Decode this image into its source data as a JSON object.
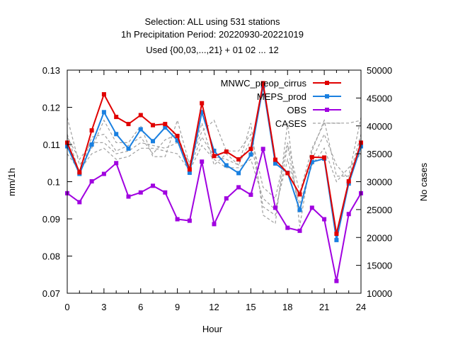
{
  "chart_data": {
    "type": "line",
    "title_lines": [
      "Selection: ALL using   531 stations",
      "1h Precipitation    Period: 20220930-20221019",
      "Used {00,03,...,21} + 01 02 ... 12"
    ],
    "xlabel": "Hour",
    "ylabel": "mm/1h",
    "y2label": "No cases",
    "xlim": [
      0,
      24
    ],
    "ylim": [
      0.07,
      0.13
    ],
    "y2lim": [
      10000,
      50000
    ],
    "xticks": [
      0,
      3,
      6,
      9,
      12,
      15,
      18,
      21,
      24
    ],
    "yticks": [
      0.07,
      0.08,
      0.09,
      0.1,
      0.11,
      0.12,
      0.13
    ],
    "ytick_labels": [
      "0.07",
      "0.08",
      "0.09",
      "0.1",
      "0.11",
      "0.12",
      "0.13"
    ],
    "y2ticks": [
      10000,
      15000,
      20000,
      25000,
      30000,
      35000,
      40000,
      45000,
      50000
    ],
    "grid": false,
    "legend_position": "top-right",
    "x": [
      0,
      1,
      2,
      3,
      4,
      5,
      6,
      7,
      8,
      9,
      10,
      11,
      12,
      13,
      14,
      15,
      16,
      17,
      18,
      19,
      20,
      21,
      22,
      23,
      24
    ],
    "series": [
      {
        "name": "MNWC_preop_cirrus",
        "color": "#e00000",
        "marker": "square",
        "axis": "y",
        "values": [
          0.1105,
          0.1025,
          0.1138,
          0.1235,
          0.1174,
          0.1155,
          0.1179,
          0.1152,
          0.1155,
          0.1123,
          0.1033,
          0.1211,
          0.1069,
          0.1081,
          0.106,
          0.1088,
          0.1265,
          0.1059,
          0.1023,
          0.0966,
          0.1066,
          0.1065,
          0.086,
          0.1001,
          0.1105
        ]
      },
      {
        "name": "MEPS_prod",
        "color": "#1a80e0",
        "marker": "square",
        "axis": "y",
        "values": [
          0.1095,
          0.1021,
          0.11,
          0.1187,
          0.1128,
          0.1089,
          0.1141,
          0.1109,
          0.1146,
          0.1111,
          0.1024,
          0.1187,
          0.1083,
          0.1044,
          0.1023,
          0.1073,
          0.1257,
          0.1049,
          0.1024,
          0.0924,
          0.1053,
          0.1062,
          0.0843,
          0.0995,
          0.1095
        ]
      },
      {
        "name": "OBS",
        "color": "#a000e0",
        "marker": "square",
        "axis": "y",
        "values": [
          0.0969,
          0.0945,
          0.1001,
          0.1021,
          0.105,
          0.096,
          0.0971,
          0.0989,
          0.0971,
          0.0899,
          0.0895,
          0.1054,
          0.0886,
          0.0955,
          0.0985,
          0.0965,
          0.1088,
          0.093,
          0.0876,
          0.0868,
          0.093,
          0.0899,
          0.0733,
          0.0913,
          0.0969
        ]
      },
      {
        "name": "CASES",
        "color": "#a0a0a0",
        "dash": true,
        "axis": "y2",
        "values": [
          41500,
          33000,
          36000,
          41000,
          37000,
          37000,
          40000,
          34500,
          34500,
          41000,
          33000,
          40500,
          33000,
          35000,
          33000,
          40500,
          24000,
          22500,
          40500,
          22000,
          35500,
          41000,
          31000,
          31000,
          41500
        ]
      }
    ],
    "case_lines": [
      {
        "values": [
          41500,
          33000,
          36000,
          41000,
          37000,
          37000,
          40000,
          34500,
          34500,
          41000,
          33000,
          40500,
          33000,
          35000,
          33000,
          40500,
          24000,
          22500,
          40500,
          22000,
          35500,
          41000,
          31000,
          31000,
          41500
        ]
      },
      {
        "values": [
          38500,
          31500,
          38000,
          38500,
          35500,
          36500,
          38000,
          35000,
          37500,
          38500,
          32500,
          38000,
          34500,
          34000,
          33000,
          37500,
          25500,
          24000,
          36500,
          24500,
          34000,
          38500,
          33000,
          30500,
          38500
        ]
      },
      {
        "values": [
          35000,
          32000,
          35000,
          36000,
          34000,
          34500,
          36000,
          36000,
          35500,
          35000,
          32000,
          36500,
          34000,
          32500,
          32500,
          34000,
          27000,
          25000,
          34000,
          26000,
          33000,
          36000,
          30000,
          32500,
          35000
        ]
      },
      {
        "values": [
          38000,
          34000,
          37000,
          37000,
          35000,
          35500,
          37000,
          36500,
          36000,
          37000,
          33500,
          39000,
          41000,
          35500,
          35500,
          38500,
          29000,
          27000,
          37000,
          28000,
          36000,
          40500,
          40500,
          40500,
          41000
        ]
      }
    ]
  }
}
